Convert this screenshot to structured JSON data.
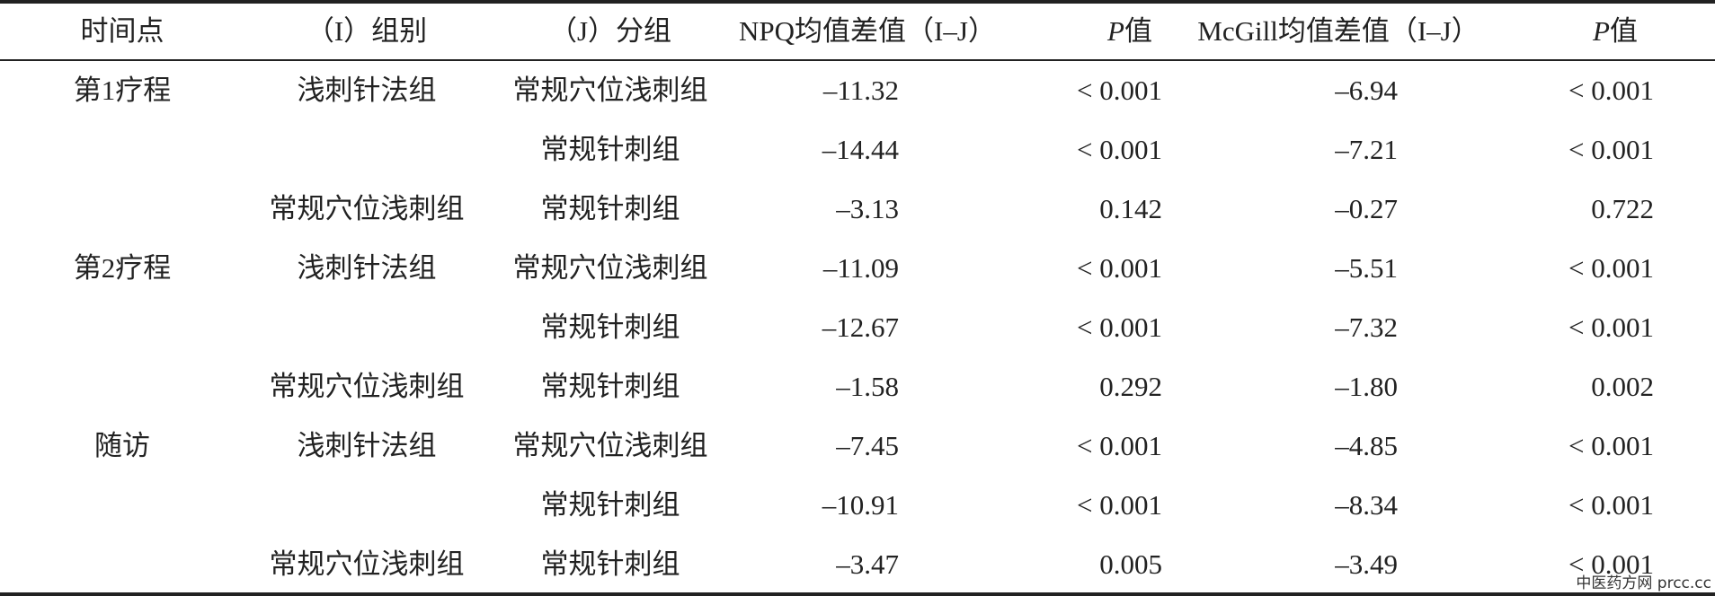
{
  "table": {
    "header": [
      "时间点",
      "（I）组别",
      "（J）分组",
      "NPQ均值差值（I–J）",
      "P值",
      "McGill均值差值（I–J）",
      "P值"
    ],
    "rows": [
      [
        "第1疗程",
        "浅刺针法组",
        "常规穴位浅刺组",
        "–11.32",
        "< 0.001",
        "–6.94",
        "< 0.001"
      ],
      [
        null,
        null,
        "常规针刺组",
        "–14.44",
        "< 0.001",
        "–7.21",
        "< 0.001"
      ],
      [
        null,
        "常规穴位浅刺组",
        "常规针刺组",
        "–3.13",
        "0.142",
        "–0.27",
        "0.722"
      ],
      [
        "第2疗程",
        "浅刺针法组",
        "常规穴位浅刺组",
        "–11.09",
        "< 0.001",
        "–5.51",
        "< 0.001"
      ],
      [
        null,
        null,
        "常规针刺组",
        "–12.67",
        "< 0.001",
        "–7.32",
        "< 0.001"
      ],
      [
        null,
        "常规穴位浅刺组",
        "常规针刺组",
        "–1.58",
        "0.292",
        "–1.80",
        "0.002"
      ],
      [
        "随访",
        "浅刺针法组",
        "常规穴位浅刺组",
        "–7.45",
        "< 0.001",
        "–4.85",
        "< 0.001"
      ],
      [
        null,
        null,
        "常规针刺组",
        "–10.91",
        "< 0.001",
        "–8.34",
        "< 0.001"
      ],
      [
        null,
        "常规穴位浅刺组",
        "常规针刺组",
        "–3.47",
        "0.005",
        "–3.49",
        "< 0.001"
      ]
    ]
  },
  "watermark": "中医药方网 prcc.cc"
}
